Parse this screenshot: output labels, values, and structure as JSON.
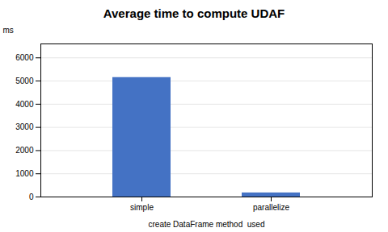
{
  "chart_data": {
    "type": "bar",
    "title": "Average time to compute UDAF",
    "xlabel": "create DataFrame method  used",
    "ylabel": "ms",
    "categories": [
      "simple",
      "parallelize"
    ],
    "values": [
      5150,
      175
    ],
    "color": "#4472C4",
    "ylim": [
      0,
      6600
    ],
    "yticks": [
      0,
      1000,
      2000,
      3000,
      4000,
      5000,
      6000
    ],
    "grid": true
  }
}
